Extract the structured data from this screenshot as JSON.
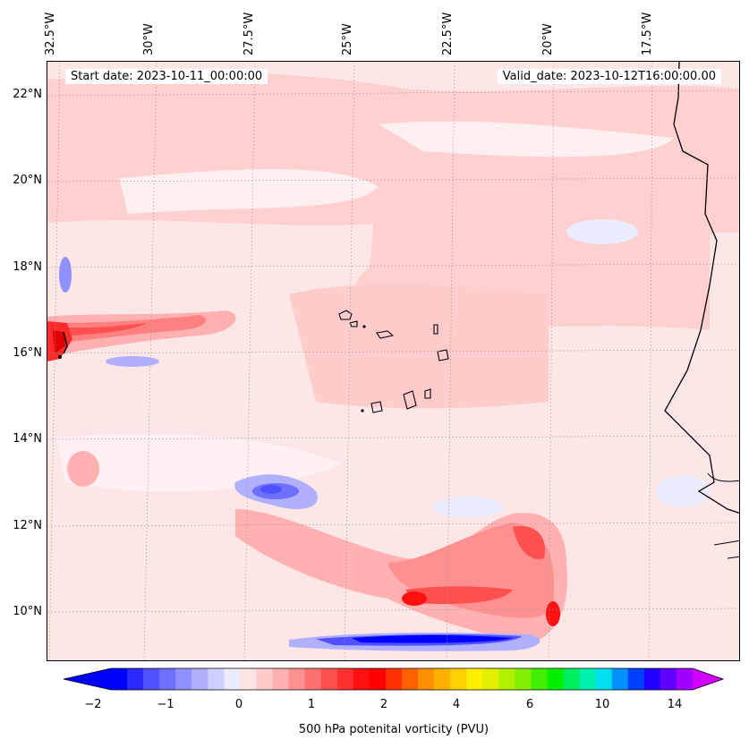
{
  "map": {
    "lon_labels": [
      "32.5°W",
      "30°W",
      "27.5°W",
      "25°W",
      "22.5°W",
      "20°W",
      "17.5°W"
    ],
    "lat_labels": [
      "22°N",
      "20°N",
      "18°N",
      "16°N",
      "14°N",
      "12°N",
      "10°N"
    ],
    "start_date": "Start date: 2023-10-11_00:00:00",
    "valid_date": "Valid_date: 2023-10-12T16:00:00.00"
  },
  "colorbar": {
    "ticks": [
      "−2",
      "−1",
      "0",
      "1",
      "2",
      "4",
      "6",
      "10",
      "14"
    ],
    "label": "500 hPa potenital vorticity (PVU)",
    "colors": [
      "#0000ff",
      "#2a2aff",
      "#5050ff",
      "#7070ff",
      "#9090ff",
      "#b0b0ff",
      "#d0d0ff",
      "#ececff",
      "#ffe4e4",
      "#ffcccc",
      "#ffb0b0",
      "#ff9090",
      "#ff7070",
      "#ff5050",
      "#ff3030",
      "#ff1010",
      "#ff0000",
      "#ff3000",
      "#ff6000",
      "#ff9000",
      "#ffb000",
      "#ffd000",
      "#fff000",
      "#e0f000",
      "#b0f000",
      "#80f000",
      "#40f000",
      "#00f000",
      "#00f060",
      "#00f0b0",
      "#00e0f0",
      "#0090ff",
      "#0040ff",
      "#2000ff",
      "#6000ff",
      "#a000ff"
    ]
  }
}
